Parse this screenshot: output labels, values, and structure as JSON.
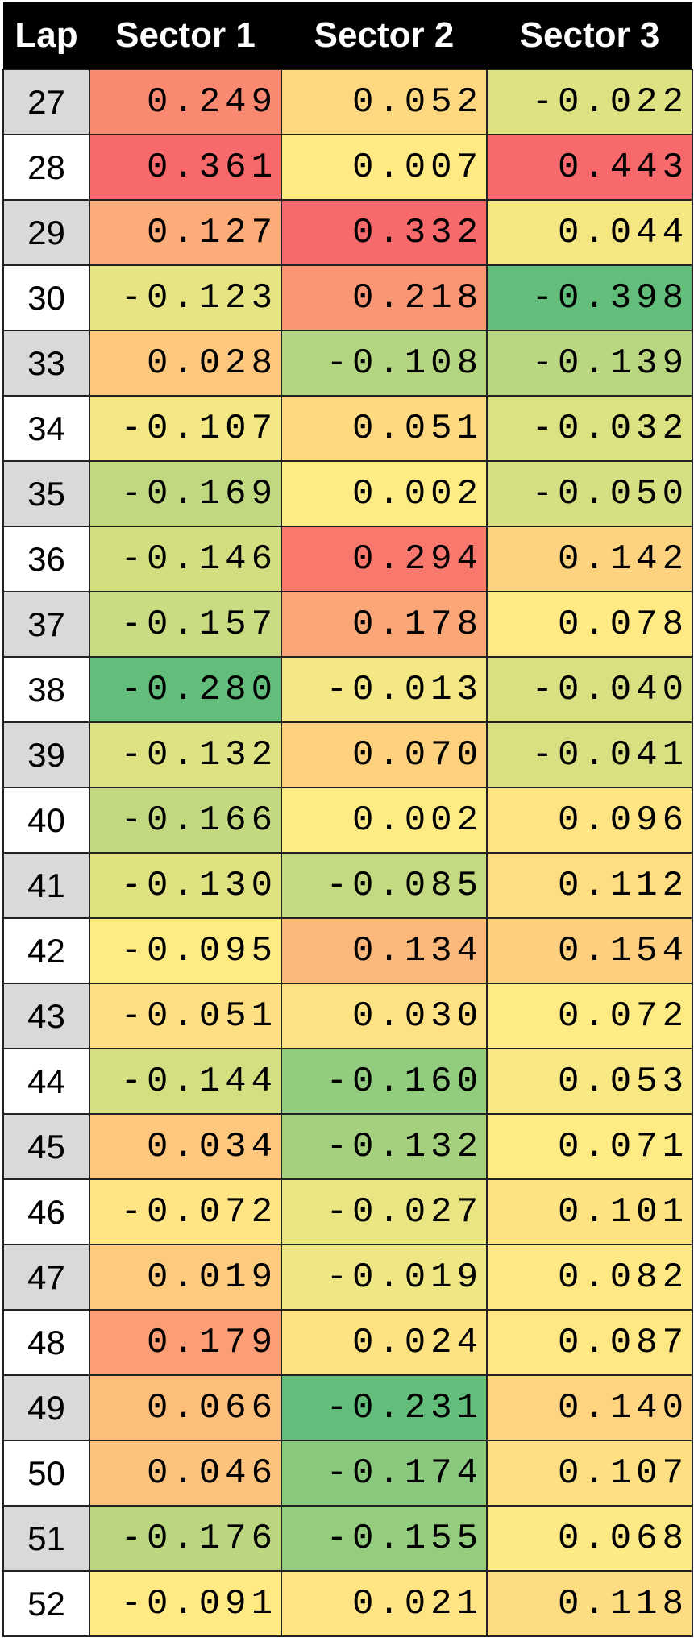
{
  "table": {
    "header": [
      "Lap",
      "Sector 1",
      "Sector 2",
      "Sector 3"
    ],
    "rows": [
      [
        "27",
        "0.249",
        "0.052",
        "-0.022"
      ],
      [
        "28",
        "0.361",
        "0.007",
        "0.443"
      ],
      [
        "29",
        "0.127",
        "0.332",
        "0.044"
      ],
      [
        "30",
        "-0.123",
        "0.218",
        "-0.398"
      ],
      [
        "33",
        "0.028",
        "-0.108",
        "-0.139"
      ],
      [
        "34",
        "-0.107",
        "0.051",
        "-0.032"
      ],
      [
        "35",
        "-0.169",
        "0.002",
        "-0.050"
      ],
      [
        "36",
        "-0.146",
        "0.294",
        "0.142"
      ],
      [
        "37",
        "-0.157",
        "0.178",
        "0.078"
      ],
      [
        "38",
        "-0.280",
        "-0.013",
        "-0.040"
      ],
      [
        "39",
        "-0.132",
        "0.070",
        "-0.041"
      ],
      [
        "40",
        "-0.166",
        "0.002",
        "0.096"
      ],
      [
        "41",
        "-0.130",
        "-0.085",
        "0.112"
      ],
      [
        "42",
        "-0.095",
        "0.134",
        "0.154"
      ],
      [
        "43",
        "-0.051",
        "0.030",
        "0.072"
      ],
      [
        "44",
        "-0.144",
        "-0.160",
        "0.053"
      ],
      [
        "45",
        "0.034",
        "-0.132",
        "0.071"
      ],
      [
        "46",
        "-0.072",
        "-0.027",
        "0.101"
      ],
      [
        "47",
        "0.019",
        "-0.019",
        "0.082"
      ],
      [
        "48",
        "0.179",
        "0.024",
        "0.087"
      ],
      [
        "49",
        "0.066",
        "-0.231",
        "0.140"
      ],
      [
        "50",
        "0.046",
        "-0.174",
        "0.107"
      ],
      [
        "51",
        "-0.176",
        "-0.155",
        "0.068"
      ],
      [
        "52",
        "-0.091",
        "0.021",
        "0.118"
      ]
    ]
  }
}
